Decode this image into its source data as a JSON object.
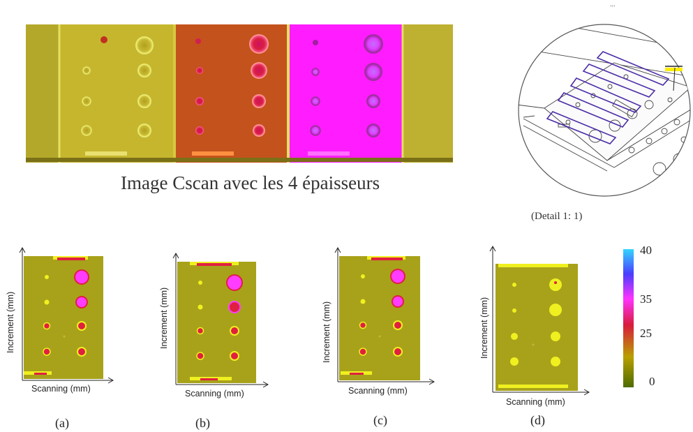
{
  "top_scan": {
    "caption": "Image Cscan avec les 4 épaisseurs"
  },
  "detail": {
    "caption": "(Detail 1: 1)",
    "marker": "..."
  },
  "panels": [
    {
      "id": "a",
      "label": "(a)",
      "xlabel": "Scanning (mm)",
      "ylabel": "Increment (mm)"
    },
    {
      "id": "b",
      "label": "(b)",
      "xlabel": "Scanning (mm)",
      "ylabel": "Increment (mm)"
    },
    {
      "id": "c",
      "label": "(c)",
      "xlabel": "Scanning (mm)",
      "ylabel": "Increment (mm)"
    },
    {
      "id": "d",
      "label": "(d)",
      "xlabel": "Scanning (mm)",
      "ylabel": "Increment (mm)"
    }
  ],
  "colorbar": {
    "ticks": [
      "40",
      "35",
      "25",
      "0"
    ],
    "colors": {
      "top": "#33d6ff",
      "upper": "#4a3cff",
      "mid": "#ff33ff",
      "red": "#d81c3c",
      "low": "#b8a000",
      "bottom": "#4e6b00"
    }
  },
  "colors": {
    "panel_bg": "#a6a21a",
    "panel_yellow": "#f0f020",
    "defect_red": "#e0183a",
    "defect_magenta": "#ff3cff",
    "strip_yellow": "#c4b42a",
    "strip_orange": "#c4501a",
    "strip_magenta": "#ff1aff"
  }
}
